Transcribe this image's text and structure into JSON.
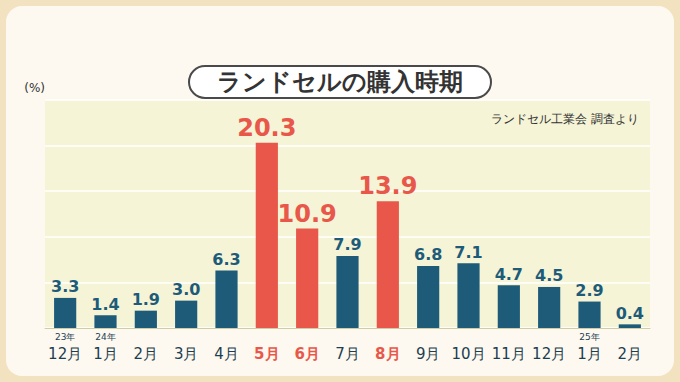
{
  "chart_data": {
    "type": "bar",
    "title": "ランドセルの購入時期",
    "subtitle": "ランドセル工業会 調査より",
    "y_label": "(%)",
    "categories": [
      "12月",
      "1月",
      "2月",
      "3月",
      "4月",
      "5月",
      "6月",
      "7月",
      "8月",
      "9月",
      "10月",
      "11月",
      "12月",
      "1月",
      "2月"
    ],
    "values": [
      3.3,
      1.4,
      1.9,
      3.0,
      6.3,
      20.3,
      10.9,
      7.9,
      13.9,
      6.8,
      7.1,
      4.7,
      4.5,
      2.9,
      0.4
    ],
    "value_labels": [
      "3.3",
      "1.4",
      "1.9",
      "3.0",
      "6.3",
      "20.3",
      "10.9",
      "7.9",
      "13.9",
      "6.8",
      "7.1",
      "4.7",
      "4.5",
      "2.9",
      "0.4"
    ],
    "annotations": [
      {
        "category": 0,
        "text": "23年"
      },
      {
        "category": 1,
        "text": "24年"
      },
      {
        "category": 13,
        "text": "25年"
      }
    ],
    "color": "#1d5b79",
    "colors": [
      "#1d5b79",
      "#1d5b79",
      "#1d5b79",
      "#1d5b79",
      "#1d5b79",
      "#e8574a",
      "#e8574a",
      "#1d5b79",
      "#e8574a",
      "#1d5b79",
      "#1d5b79",
      "#1d5b79",
      "#1d5b79",
      "#1d5b79",
      "#1d5b79"
    ],
    "ylim": [
      0,
      25
    ],
    "yticks": [
      0,
      5,
      10,
      15,
      20,
      25
    ],
    "grid": true,
    "data_labels": true,
    "tick_labels": "x"
  }
}
